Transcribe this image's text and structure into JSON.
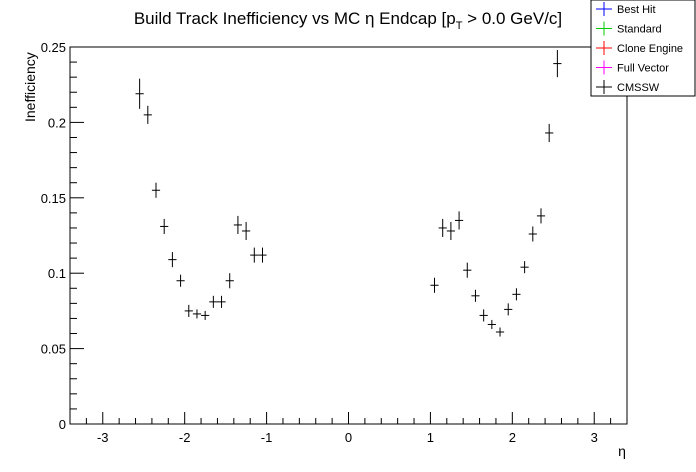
{
  "chart_data": {
    "type": "scatter",
    "title_main": "Build Track Inefficiency vs MC η Endcap [p",
    "title_sub": "T",
    "title_tail": " > 0.0 GeV/c]",
    "xlabel": "η",
    "ylabel": "Inefficiency",
    "xlim": [
      -3.4,
      3.4
    ],
    "ylim": [
      0,
      0.25
    ],
    "xticks": [
      -3,
      -2,
      -1,
      0,
      1,
      2,
      3
    ],
    "yticks": [
      0,
      0.05,
      0.1,
      0.15,
      0.2,
      0.25
    ],
    "xtick_labels": [
      "-3",
      "-2",
      "-1",
      "0",
      "1",
      "2",
      "3"
    ],
    "ytick_labels": [
      "0",
      "0.05",
      "0.1",
      "0.15",
      "0.2",
      "0.25"
    ],
    "legend": [
      {
        "name": "Best Hit",
        "color": "#0000ff"
      },
      {
        "name": "Standard",
        "color": "#00cc00"
      },
      {
        "name": "Clone Engine",
        "color": "#ff0000"
      },
      {
        "name": "Full Vector",
        "color": "#ff00ff"
      },
      {
        "name": "CMSSW",
        "color": "#000000"
      }
    ],
    "series": [
      {
        "name": "CMSSW",
        "color": "#000000",
        "x_halfwidth": 0.05,
        "points": [
          {
            "x": -2.55,
            "y": 0.219,
            "err": 0.01
          },
          {
            "x": -2.45,
            "y": 0.205,
            "err": 0.006
          },
          {
            "x": -2.35,
            "y": 0.155,
            "err": 0.005
          },
          {
            "x": -2.25,
            "y": 0.131,
            "err": 0.005
          },
          {
            "x": -2.15,
            "y": 0.109,
            "err": 0.005
          },
          {
            "x": -2.05,
            "y": 0.095,
            "err": 0.004
          },
          {
            "x": -1.95,
            "y": 0.075,
            "err": 0.004
          },
          {
            "x": -1.85,
            "y": 0.073,
            "err": 0.003
          },
          {
            "x": -1.75,
            "y": 0.072,
            "err": 0.003
          },
          {
            "x": -1.65,
            "y": 0.081,
            "err": 0.004
          },
          {
            "x": -1.55,
            "y": 0.081,
            "err": 0.004
          },
          {
            "x": -1.45,
            "y": 0.095,
            "err": 0.005
          },
          {
            "x": -1.35,
            "y": 0.132,
            "err": 0.006
          },
          {
            "x": -1.25,
            "y": 0.128,
            "err": 0.006
          },
          {
            "x": -1.15,
            "y": 0.112,
            "err": 0.005
          },
          {
            "x": -1.05,
            "y": 0.112,
            "err": 0.005
          },
          {
            "x": 1.05,
            "y": 0.092,
            "err": 0.005
          },
          {
            "x": 1.15,
            "y": 0.13,
            "err": 0.006
          },
          {
            "x": 1.25,
            "y": 0.128,
            "err": 0.006
          },
          {
            "x": 1.35,
            "y": 0.135,
            "err": 0.006
          },
          {
            "x": 1.45,
            "y": 0.102,
            "err": 0.005
          },
          {
            "x": 1.55,
            "y": 0.085,
            "err": 0.004
          },
          {
            "x": 1.65,
            "y": 0.072,
            "err": 0.004
          },
          {
            "x": 1.75,
            "y": 0.066,
            "err": 0.003
          },
          {
            "x": 1.85,
            "y": 0.061,
            "err": 0.003
          },
          {
            "x": 1.95,
            "y": 0.076,
            "err": 0.004
          },
          {
            "x": 2.05,
            "y": 0.086,
            "err": 0.004
          },
          {
            "x": 2.15,
            "y": 0.104,
            "err": 0.004
          },
          {
            "x": 2.25,
            "y": 0.126,
            "err": 0.005
          },
          {
            "x": 2.35,
            "y": 0.138,
            "err": 0.005
          },
          {
            "x": 2.45,
            "y": 0.193,
            "err": 0.006
          },
          {
            "x": 2.55,
            "y": 0.239,
            "err": 0.009
          }
        ]
      }
    ],
    "grid": false,
    "legend_position": "top-right"
  }
}
